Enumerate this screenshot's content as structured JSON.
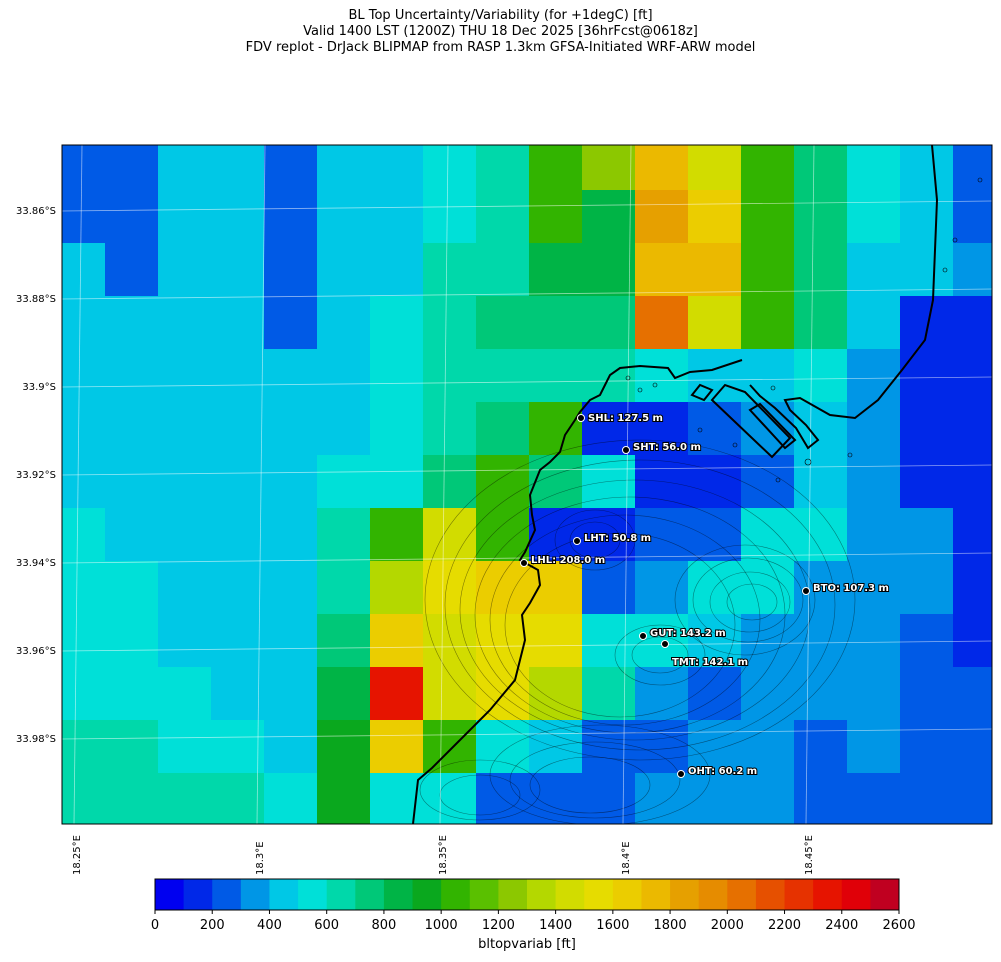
{
  "title": {
    "line1": "BL Top Uncertainty/Variability (for +1degC) [ft]",
    "line2": "Valid 1400 LST (1200Z) THU 18 Dec 2025 [36hrFcst@0618z]",
    "line3": "FDV replot - DrJack BLIPMAP from RASP 1.3km GFSA-Initiated WRF-ARW model"
  },
  "lat_labels": [
    "33.86°S",
    "33.88°S",
    "33.9°S",
    "33.92°S",
    "33.94°S",
    "33.96°S",
    "33.98°S"
  ],
  "lon_labels": [
    "18.25°E",
    "18.3°E",
    "18.35°E",
    "18.4°E",
    "18.45°E"
  ],
  "sites": [
    {
      "label": "SHL: 127.5 m"
    },
    {
      "label": "SHT: 56.0 m"
    },
    {
      "label": "LHT: 50.8 m"
    },
    {
      "label": "LHL: 208.0 m"
    },
    {
      "label": "BTO: 107.3 m"
    },
    {
      "label": "GUT: 143.2 m"
    },
    {
      "label": "TMT: 142.1 m"
    },
    {
      "label": "OHT: 60.2 m"
    }
  ],
  "colorbar": {
    "ticks": [
      "0",
      "200",
      "400",
      "600",
      "800",
      "1000",
      "1200",
      "1400",
      "1600",
      "1800",
      "2000",
      "2200",
      "2400",
      "2600"
    ],
    "label": "bltopvariab [ft]",
    "colors": [
      "#0000f0",
      "#0028e8",
      "#005ae6",
      "#0096e6",
      "#00c8e6",
      "#00e0d8",
      "#00d8aa",
      "#00c878",
      "#00b446",
      "#0aa81e",
      "#32b400",
      "#5ac000",
      "#8cc800",
      "#b4d800",
      "#d2dc00",
      "#e6dc00",
      "#ebcd00",
      "#ebb900",
      "#e6a000",
      "#e68c00",
      "#e67000",
      "#e65000",
      "#e63200",
      "#e61400",
      "#e00008",
      "#c00020"
    ]
  },
  "grid": {
    "cols": 18,
    "rows": 13,
    "values": [
      [
        200,
        200,
        400,
        400,
        200,
        400,
        400,
        500,
        600,
        1000,
        1200,
        1700,
        1400,
        1000,
        700,
        500,
        400,
        200
      ],
      [
        200,
        200,
        400,
        400,
        200,
        400,
        400,
        500,
        600,
        1000,
        800,
        1800,
        1600,
        1000,
        700,
        500,
        400,
        200
      ],
      [
        400,
        200,
        400,
        400,
        200,
        400,
        400,
        600,
        600,
        800,
        800,
        1700,
        1700,
        1000,
        700,
        400,
        400,
        300
      ],
      [
        400,
        400,
        400,
        400,
        200,
        400,
        500,
        600,
        700,
        700,
        700,
        2000,
        1400,
        1000,
        700,
        400,
        100,
        100
      ],
      [
        400,
        400,
        400,
        400,
        400,
        400,
        500,
        600,
        600,
        600,
        600,
        500,
        400,
        400,
        500,
        300,
        100,
        100
      ],
      [
        400,
        400,
        400,
        400,
        400,
        400,
        500,
        600,
        700,
        1000,
        100,
        100,
        200,
        300,
        400,
        300,
        100,
        100
      ],
      [
        400,
        400,
        400,
        400,
        400,
        500,
        500,
        700,
        1000,
        700,
        500,
        100,
        100,
        200,
        400,
        300,
        100,
        100
      ],
      [
        500,
        400,
        400,
        400,
        400,
        600,
        1000,
        1400,
        1000,
        100,
        100,
        200,
        200,
        500,
        500,
        300,
        300,
        100
      ],
      [
        500,
        500,
        400,
        400,
        400,
        600,
        1300,
        1500,
        1600,
        1600,
        200,
        300,
        500,
        500,
        300,
        300,
        300,
        100
      ],
      [
        500,
        500,
        400,
        400,
        400,
        700,
        1600,
        1400,
        1500,
        1500,
        500,
        500,
        400,
        300,
        300,
        300,
        200,
        100
      ],
      [
        500,
        500,
        500,
        400,
        400,
        800,
        2300,
        1400,
        1500,
        1300,
        600,
        300,
        200,
        300,
        300,
        300,
        200,
        200
      ],
      [
        600,
        600,
        500,
        500,
        400,
        900,
        1600,
        1000,
        500,
        400,
        200,
        200,
        300,
        300,
        200,
        300,
        200,
        200
      ],
      [
        600,
        600,
        600,
        600,
        500,
        900,
        500,
        500,
        200,
        200,
        200,
        300,
        300,
        300,
        200,
        200,
        200,
        200
      ]
    ]
  }
}
